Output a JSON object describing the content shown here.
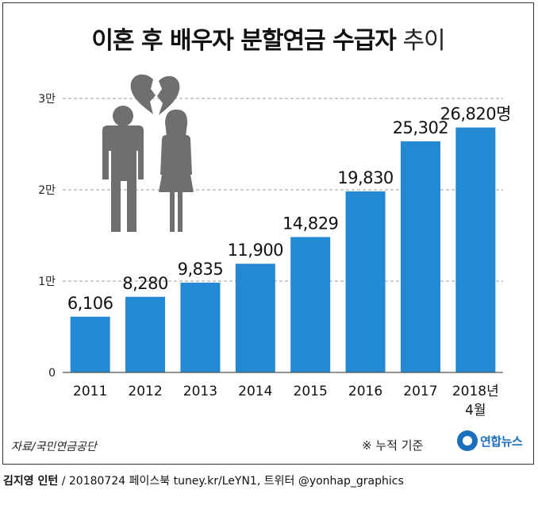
{
  "title": {
    "main": "이혼 후 배우자 분할연금 수급자",
    "suffix": "추이"
  },
  "chart_data": {
    "type": "bar",
    "categories": [
      "2011",
      "2012",
      "2013",
      "2014",
      "2015",
      "2016",
      "2017",
      "2018년 4월"
    ],
    "values": [
      6106,
      8280,
      9835,
      11900,
      14829,
      19830,
      25302,
      26820
    ],
    "value_labels": [
      "6,106",
      "8,280",
      "9,835",
      "11,900",
      "14,829",
      "19,830",
      "25,302",
      "26,820명"
    ],
    "y_ticks": [
      {
        "value": 0,
        "label": "0"
      },
      {
        "value": 10000,
        "label": "1만"
      },
      {
        "value": 20000,
        "label": "2만"
      },
      {
        "value": 30000,
        "label": "3만"
      }
    ],
    "ylim": [
      0,
      30000
    ],
    "grid": "dashed horizontal",
    "bar_color": "#2389d4"
  },
  "illustration": {
    "icon": "divorced-couple-broken-heart-icon",
    "color": "#6f6f6f"
  },
  "source": "자료/국민연금공단",
  "note": "※ 누적 기준",
  "logo": "연합뉴스",
  "credit": {
    "name": "김지영 인턴",
    "rest": " / 20180724 페이스북 tuney.kr/LeYN1, 트위터 @yonhap_graphics"
  }
}
